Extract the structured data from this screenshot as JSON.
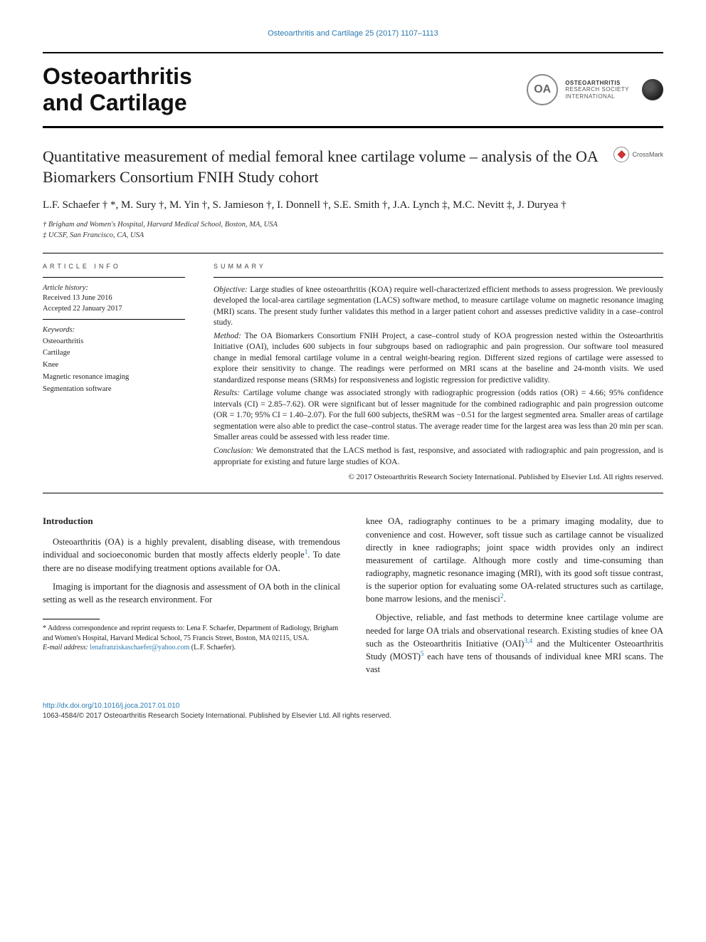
{
  "header": {
    "top_reference": "Osteoarthritis and Cartilage 25 (2017) 1107–1113",
    "journal_name_l1": "Osteoarthritis",
    "journal_name_l2": "and Cartilage",
    "oarsi_oa": "OA",
    "oarsi_l1": "OSTEOARTHRITIS",
    "oarsi_l2": "RESEARCH SOCIETY",
    "oarsi_l3": "INTERNATIONAL"
  },
  "title": "Quantitative measurement of medial femoral knee cartilage volume – analysis of the OA Biomarkers Consortium FNIH Study cohort",
  "crossmark": "CrossMark",
  "authors": "L.F. Schaefer † *, M. Sury †, M. Yin †, S. Jamieson †, I. Donnell †, S.E. Smith †, J.A. Lynch ‡, M.C. Nevitt ‡, J. Duryea †",
  "affiliations": {
    "a1": "† Brigham and Women's Hospital, Harvard Medical School, Boston, MA, USA",
    "a2": "‡ UCSF, San Francisco, CA, USA"
  },
  "info": {
    "hdr": "ARTICLE INFO",
    "history_label": "Article history:",
    "received": "Received 13 June 2016",
    "accepted": "Accepted 22 January 2017",
    "keywords_label": "Keywords:",
    "kw1": "Osteoarthritis",
    "kw2": "Cartilage",
    "kw3": "Knee",
    "kw4": "Magnetic resonance imaging",
    "kw5": "Segmentation software"
  },
  "summary": {
    "hdr": "SUMMARY",
    "objective_label": "Objective:",
    "objective": "Large studies of knee osteoarthritis (KOA) require well-characterized efficient methods to assess progression. We previously developed the local-area cartilage segmentation (LACS) software method, to measure cartilage volume on magnetic resonance imaging (MRI) scans. The present study further validates this method in a larger patient cohort and assesses predictive validity in a case–control study.",
    "method_label": "Method:",
    "method": "The OA Biomarkers Consortium FNIH Project, a case–control study of KOA progression nested within the Osteoarthritis Initiative (OAI), includes 600 subjects in four subgroups based on radiographic and pain progression. Our software tool measured change in medial femoral cartilage volume in a central weight-bearing region. Different sized regions of cartilage were assessed to explore their sensitivity to change. The readings were performed on MRI scans at the baseline and 24-month visits. We used standardized response means (SRMs) for responsiveness and logistic regression for predictive validity.",
    "results_label": "Results:",
    "results": "Cartilage volume change was associated strongly with radiographic progression (odds ratios (OR) = 4.66; 95% confidence intervals (CI) = 2.85–7.62). OR were significant but of lesser magnitude for the combined radiographic and pain progression outcome (OR = 1.70; 95% CI = 1.40–2.07). For the full 600 subjects, theSRM was −0.51 for the largest segmented area. Smaller areas of cartilage segmentation were also able to predict the case–control status. The average reader time for the largest area was less than 20 min per scan. Smaller areas could be assessed with less reader time.",
    "conclusion_label": "Conclusion:",
    "conclusion": "We demonstrated that the LACS method is fast, responsive, and associated with radiographic and pain progression, and is appropriate for existing and future large studies of KOA.",
    "copyright": "© 2017 Osteoarthritis Research Society International. Published by Elsevier Ltd. All rights reserved."
  },
  "body": {
    "intro_hdr": "Introduction",
    "p1": "Osteoarthritis (OA) is a highly prevalent, disabling disease, with tremendous individual and socioeconomic burden that mostly affects elderly people",
    "p1_sup": "1",
    "p1_cont": ". To date there are no disease modifying treatment options available for OA.",
    "p2": "Imaging is important for the diagnosis and assessment of OA both in the clinical setting as well as the research environment. For",
    "p3": "knee OA, radiography continues to be a primary imaging modality, due to convenience and cost. However, soft tissue such as cartilage cannot be visualized directly in knee radiographs; joint space width provides only an indirect measurement of cartilage. Although more costly and time-consuming than radiography, magnetic resonance imaging (MRI), with its good soft tissue contrast, is the superior option for evaluating some OA-related structures such as cartilage, bone marrow lesions, and the menisci",
    "p3_sup": "2",
    "p3_end": ".",
    "p4": "Objective, reliable, and fast methods to determine knee cartilage volume are needed for large OA trials and observational research. Existing studies of knee OA such as the Osteoarthritis Initiative (OAI)",
    "p4_sup1": "3,4",
    "p4_mid": " and the Multicenter Osteoarthritis Study (MOST)",
    "p4_sup2": "5",
    "p4_end": " each have tens of thousands of individual knee MRI scans. The vast"
  },
  "footnote": {
    "corr": "* Address correspondence and reprint requests to: Lena F. Schaefer, Department of Radiology, Brigham and Women's Hospital, Harvard Medical School, 75 Francis Street, Boston, MA 02115, USA.",
    "email_label": "E-mail address:",
    "email": "lenafranziskaschaefer@yahoo.com",
    "email_who": "(L.F. Schaefer)."
  },
  "bottom": {
    "doi": "http://dx.doi.org/10.1016/j.joca.2017.01.010",
    "issn": "1063-4584/© 2017 Osteoarthritis Research Society International. Published by Elsevier Ltd. All rights reserved."
  },
  "colors": {
    "link": "#2a7ab0",
    "text": "#222222",
    "rule": "#000000"
  }
}
